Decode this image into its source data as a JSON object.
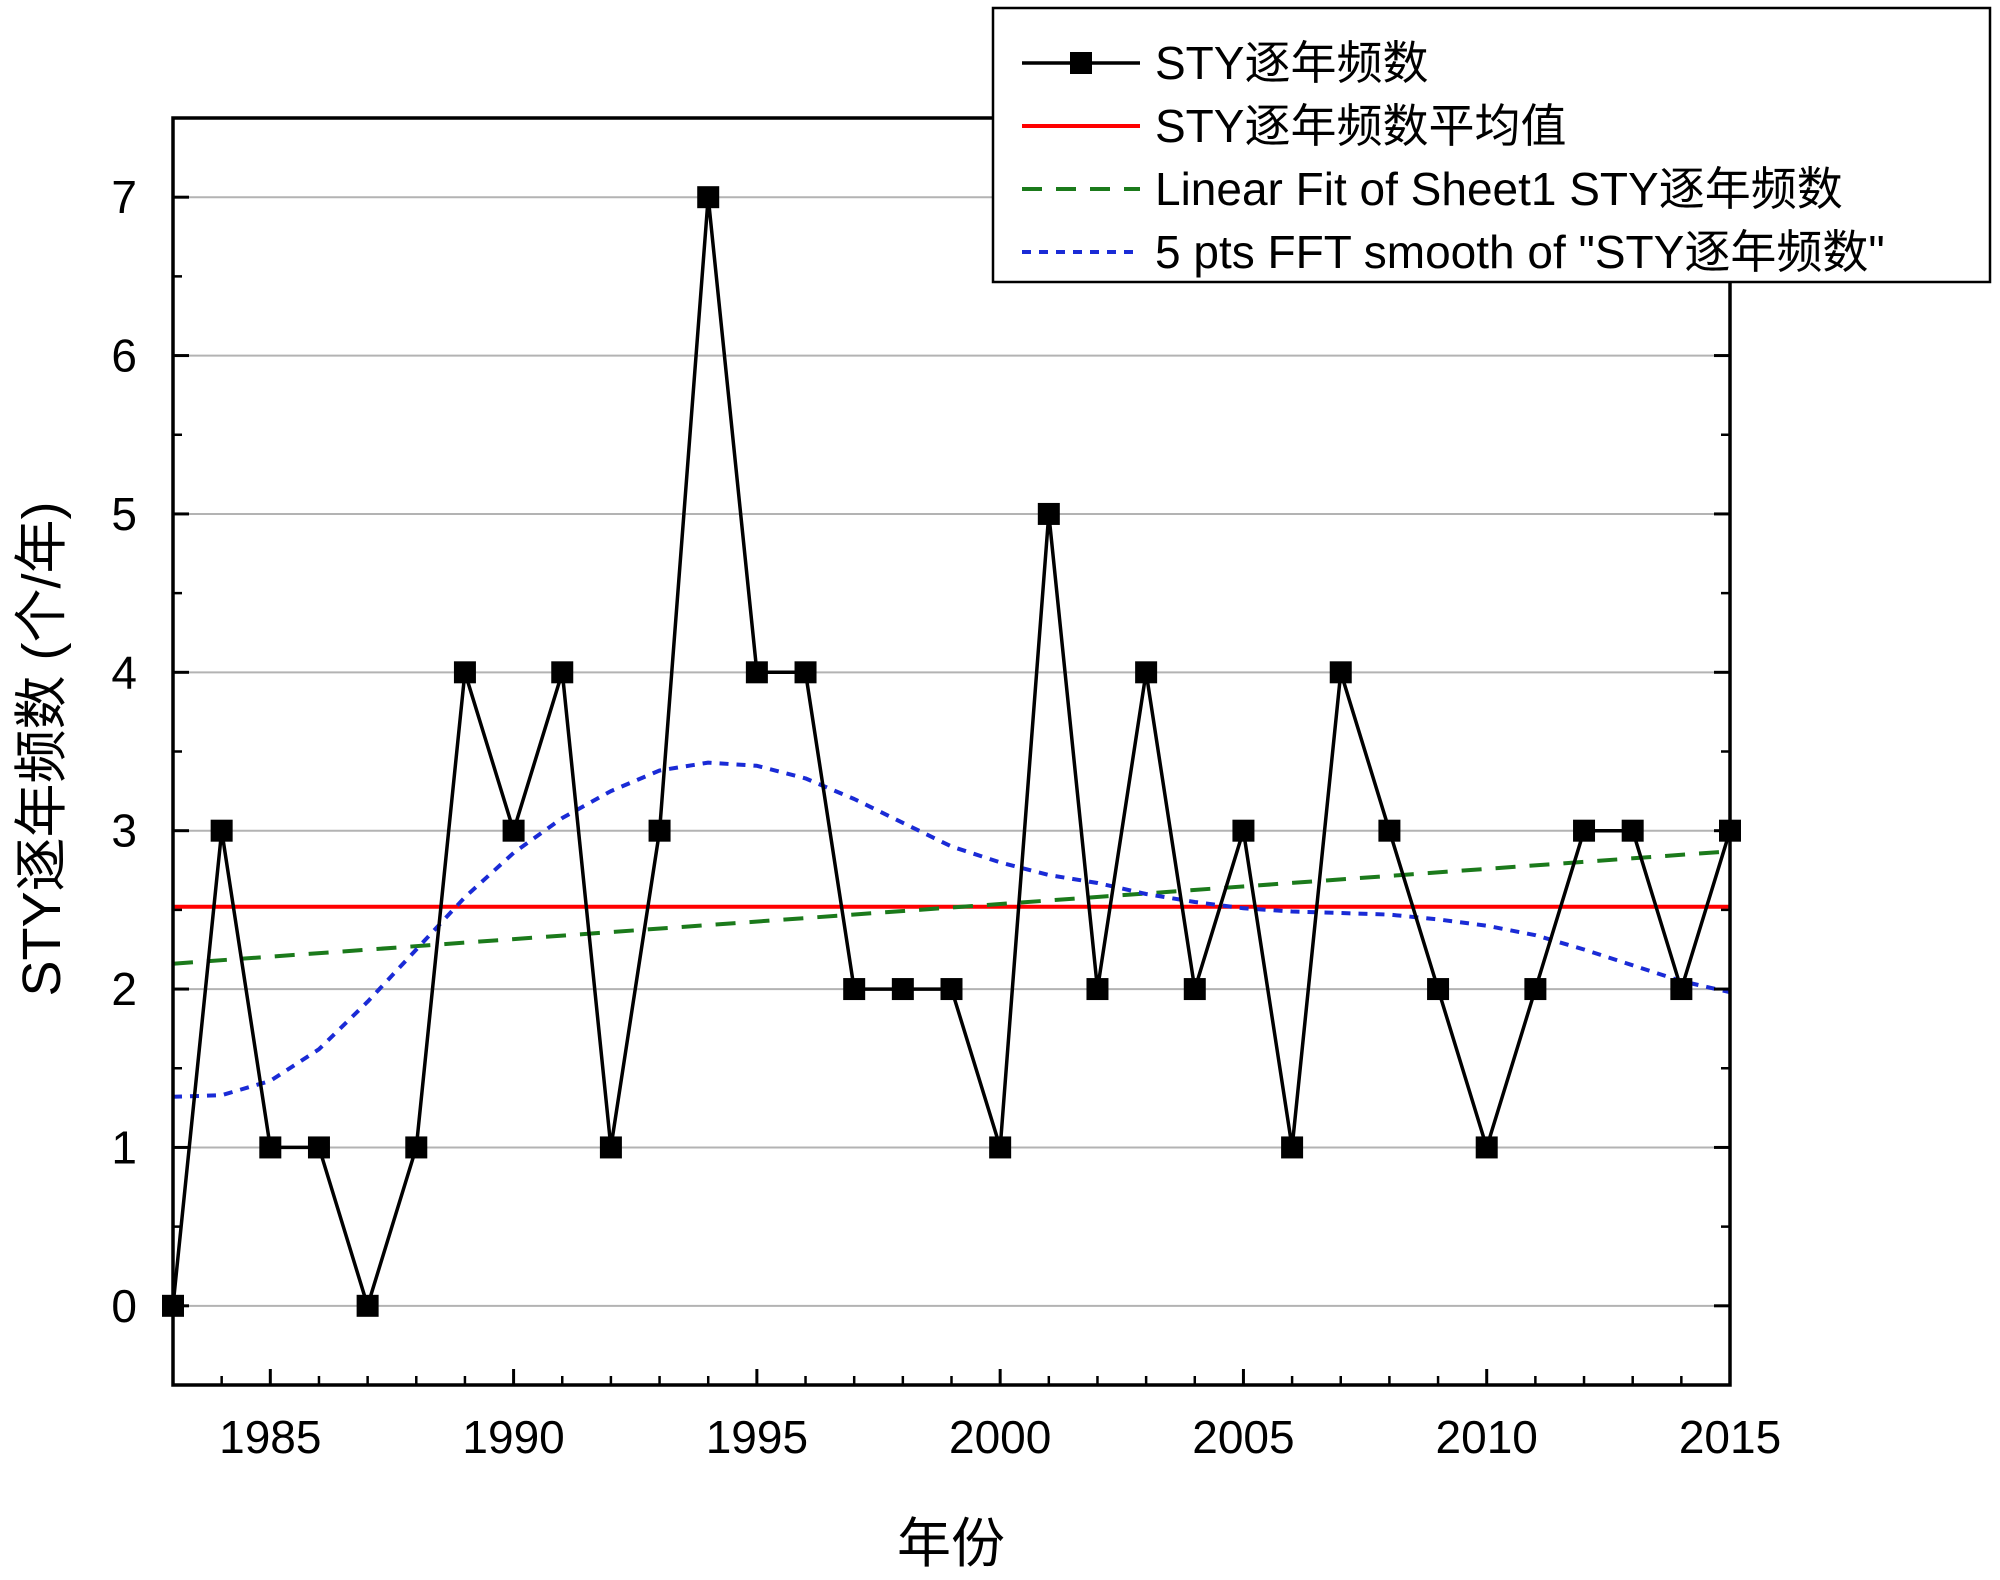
{
  "chart_data": {
    "type": "line",
    "xlabel": "年份",
    "ylabel": "STY逐年频数 (个/年)",
    "xlim": [
      1983,
      2015
    ],
    "ylim": [
      -0.5,
      7.5
    ],
    "x_ticks": [
      1985,
      1990,
      1995,
      2000,
      2005,
      2010,
      2015
    ],
    "y_ticks": [
      0,
      1,
      2,
      3,
      4,
      5,
      6,
      7
    ],
    "grid": "horizontal",
    "legend_position": "top-right",
    "series": [
      {
        "name": "STY逐年频数",
        "style": "line-square-markers",
        "color": "#000000",
        "x": [
          1983,
          1984,
          1985,
          1986,
          1987,
          1988,
          1989,
          1990,
          1991,
          1992,
          1993,
          1994,
          1995,
          1996,
          1997,
          1998,
          1999,
          2000,
          2001,
          2002,
          2003,
          2004,
          2005,
          2006,
          2007,
          2008,
          2009,
          2010,
          2011,
          2012,
          2013,
          2014,
          2015
        ],
        "values": [
          0,
          3,
          1,
          1,
          0,
          1,
          4,
          3,
          4,
          1,
          3,
          7,
          4,
          4,
          2,
          2,
          2,
          1,
          5,
          2,
          4,
          2,
          3,
          1,
          4,
          3,
          2,
          1,
          2,
          3,
          3,
          2,
          3
        ]
      },
      {
        "name": "STY逐年频数平均值",
        "style": "solid",
        "color": "#ff0000",
        "x": [
          1983,
          2015
        ],
        "values": [
          2.52,
          2.52
        ]
      },
      {
        "name": "Linear Fit of Sheet1 STY逐年频数",
        "style": "dashed",
        "color": "#1b7a1b",
        "x": [
          1983,
          2015
        ],
        "values": [
          2.16,
          2.87
        ]
      },
      {
        "name": "5 pts FFT smooth of \"STY逐年频数\"",
        "style": "dotted",
        "color": "#1a2bd6",
        "x": [
          1983,
          1984,
          1985,
          1986,
          1987,
          1988,
          1989,
          1990,
          1991,
          1992,
          1993,
          1994,
          1995,
          1996,
          1997,
          1998,
          1999,
          2000,
          2001,
          2002,
          2003,
          2004,
          2005,
          2006,
          2007,
          2008,
          2009,
          2010,
          2011,
          2012,
          2013,
          2014,
          2015
        ],
        "values": [
          1.32,
          1.33,
          1.42,
          1.62,
          1.92,
          2.25,
          2.58,
          2.86,
          3.08,
          3.25,
          3.38,
          3.43,
          3.41,
          3.33,
          3.2,
          3.05,
          2.9,
          2.8,
          2.72,
          2.67,
          2.6,
          2.55,
          2.51,
          2.49,
          2.48,
          2.47,
          2.44,
          2.4,
          2.34,
          2.25,
          2.15,
          2.05,
          1.98
        ]
      }
    ]
  }
}
